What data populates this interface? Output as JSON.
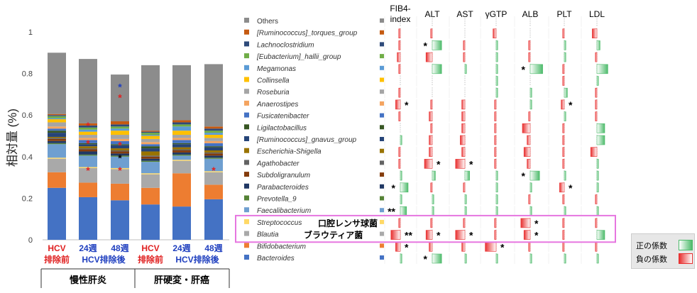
{
  "chart_data": [
    {
      "type": "bar",
      "stacked": true,
      "ylabel": "相対量 (%)",
      "ylim": [
        0,
        1
      ],
      "yticks": [
        "0",
        "0.2",
        "0.4",
        "0.6",
        "0.8",
        "1"
      ],
      "grid": false,
      "groups": [
        {
          "label": "慢性肝炎",
          "columns": [
            0,
            1,
            2
          ]
        },
        {
          "label": "肝硬変・肝癌",
          "columns": [
            3,
            4,
            5
          ]
        }
      ],
      "columns": [
        {
          "line1": "HCV",
          "line2": "排除前",
          "color_key": "red"
        },
        {
          "line1": "24週",
          "line2": "HCV排除後",
          "color_key": "blue"
        },
        {
          "line1": "48週",
          "line2": "",
          "color_key": "blue"
        },
        {
          "line1": "HCV",
          "line2": "排除前",
          "color_key": "red"
        },
        {
          "line1": "24週",
          "line2": "HCV排除後",
          "color_key": "blue"
        },
        {
          "line1": "48週",
          "line2": "",
          "color_key": "blue"
        }
      ],
      "series": [
        {
          "name": "Bacteroides",
          "values": [
            0.25,
            0.205,
            0.19,
            0.17,
            0.16,
            0.195
          ]
        },
        {
          "name": "Bifidobacterium",
          "values": [
            0.075,
            0.07,
            0.08,
            0.08,
            0.16,
            0.07
          ]
        },
        {
          "name": "Blautia",
          "values": [
            0.065,
            0.07,
            0.07,
            0.065,
            0.06,
            0.06
          ]
        },
        {
          "name": "Streptococcus",
          "values": [
            0.005,
            0.005,
            0.005,
            0.005,
            0.005,
            0.005
          ]
        },
        {
          "name": "Faecalibacterium",
          "values": [
            0.065,
            0.055,
            0.055,
            0.055,
            0.02,
            0.06
          ]
        },
        {
          "name": "Prevotella_9",
          "values": [
            0.005,
            0.005,
            0.005,
            0.005,
            0.005,
            0.005
          ]
        },
        {
          "name": "Parabacteroides",
          "values": [
            0.01,
            0.015,
            0.01,
            0.01,
            0.01,
            0.01
          ]
        },
        {
          "name": "Subdoligranulum",
          "values": [
            0.01,
            0.01,
            0.01,
            0.01,
            0.01,
            0.01
          ]
        },
        {
          "name": "Agathobacter",
          "values": [
            0.005,
            0.005,
            0.005,
            0.005,
            0.005,
            0.005
          ]
        },
        {
          "name": "Escherichia-Shigella",
          "values": [
            0.005,
            0.01,
            0.01,
            0.02,
            0.01,
            0.01
          ]
        },
        {
          "name": "[Ruminococcus]_gnavus_group",
          "values": [
            0.02,
            0.01,
            0.015,
            0.015,
            0.015,
            0.015
          ]
        },
        {
          "name": "Ligilactobacillus",
          "values": [
            0.01,
            0.005,
            0.005,
            0.01,
            0.005,
            0.005
          ]
        },
        {
          "name": "Fusicatenibacter",
          "values": [
            0.01,
            0.015,
            0.015,
            0.01,
            0.015,
            0.015
          ]
        },
        {
          "name": "Anaerostipes",
          "values": [
            0.01,
            0.01,
            0.01,
            0.01,
            0.01,
            0.01
          ]
        },
        {
          "name": "Roseburia",
          "values": [
            0.02,
            0.015,
            0.02,
            0.015,
            0.015,
            0.015
          ]
        },
        {
          "name": "Collinsella",
          "values": [
            0.015,
            0.015,
            0.02,
            0.015,
            0.02,
            0.015
          ]
        },
        {
          "name": "Megamonas",
          "values": [
            0.005,
            0.01,
            0.01,
            0.005,
            0.02,
            0.01
          ]
        },
        {
          "name": "[Eubacterium]_hallii_group",
          "values": [
            0.01,
            0.01,
            0.01,
            0.01,
            0.01,
            0.01
          ]
        },
        {
          "name": "Lachnoclostridium",
          "values": [
            0.005,
            0.01,
            0.01,
            0.005,
            0.01,
            0.01
          ]
        },
        {
          "name": "[Ruminococcus]_torques_group",
          "values": [
            0.005,
            0.01,
            0.015,
            0.005,
            0.01,
            0.01
          ]
        },
        {
          "name": "Others",
          "values": [
            0.295,
            0.31,
            0.225,
            0.315,
            0.265,
            0.3
          ]
        }
      ],
      "markers": [
        {
          "column": 1,
          "y": 0.55,
          "text": "*",
          "color_key": "red"
        },
        {
          "column": 1,
          "y": 0.465,
          "text": "*",
          "color_key": "red"
        },
        {
          "column": 1,
          "y": 0.335,
          "text": "*",
          "color_key": "red"
        },
        {
          "column": 2,
          "y": 0.735,
          "text": "*",
          "color_key": "blue"
        },
        {
          "column": 2,
          "y": 0.685,
          "text": "*",
          "color_key": "red"
        },
        {
          "column": 2,
          "y": 0.455,
          "text": "*",
          "color_key": "red"
        },
        {
          "column": 2,
          "y": 0.395,
          "text": "*",
          "color_key": "black"
        },
        {
          "column": 2,
          "y": 0.335,
          "text": "*",
          "color_key": "red"
        },
        {
          "column": 5,
          "y": 0.335,
          "text": "*",
          "color_key": "red"
        }
      ]
    },
    {
      "type": "heatmap",
      "columns": [
        "FIB4-index",
        "ALT",
        "AST",
        "γGTP",
        "ALB",
        "PLT",
        "LDL"
      ],
      "rows": [
        "Others",
        "[Ruminococcus]_torques_group",
        "Lachnoclostridium",
        "[Eubacterium]_hallii_group",
        "Megamonas",
        "Collinsella",
        "Roseburia",
        "Anaerostipes",
        "Fusicatenibacter",
        "Ligilactobacillus",
        "[Ruminococcus]_gnavus_group",
        "Escherichia-Shigella",
        "Agathobacter",
        "Subdoligranulum",
        "Parabacteroides",
        "Prevotella_9",
        "Faecalibacterium",
        "Streptococcus",
        "Blautia",
        "Bifidobacterium",
        "Bacteroides"
      ],
      "coefficients": [
        [
          0,
          0,
          0,
          0,
          0,
          0,
          0
        ],
        [
          -0.1,
          -0.1,
          0,
          -0.2,
          0,
          -0.1,
          -0.3
        ],
        [
          -0.1,
          0.6,
          -0.1,
          0.1,
          -0.1,
          0.1,
          0.2
        ],
        [
          -0.2,
          -0.4,
          -0.1,
          0.1,
          -0.1,
          0.1,
          -0.1
        ],
        [
          -0.1,
          0.6,
          0.1,
          0.1,
          0.8,
          -0.1,
          0.7
        ],
        [
          0,
          0,
          0,
          0.1,
          0,
          -0.1,
          0.1
        ],
        [
          -0.1,
          0,
          0,
          0.1,
          0.1,
          0.2,
          -0.1
        ],
        [
          -0.3,
          -0.1,
          -0.2,
          -0.1,
          0.1,
          -0.2,
          -0.1
        ],
        [
          -0.1,
          -0.2,
          -0.2,
          -0.1,
          -0.1,
          0.1,
          -0.1
        ],
        [
          0,
          -0.1,
          -0.2,
          -0.1,
          -0.5,
          -0.1,
          0.5
        ],
        [
          0.1,
          -0.2,
          -0.3,
          -0.1,
          -0.2,
          -0.1,
          0.5
        ],
        [
          -0.1,
          -0.2,
          -0.2,
          -0.1,
          -0.4,
          -0.1,
          -0.4
        ],
        [
          -0.1,
          -0.5,
          -0.6,
          -0.1,
          -0.2,
          -0.1,
          0.1
        ],
        [
          0.1,
          0.2,
          0.3,
          0.1,
          0.6,
          0.1,
          0.1
        ],
        [
          0.5,
          -0.1,
          -0.1,
          0.1,
          0.1,
          -0.3,
          0.1
        ],
        [
          0.1,
          0.1,
          0.1,
          0.1,
          -0.1,
          -0.1,
          -0.1
        ],
        [
          0.4,
          0.1,
          0.1,
          0.1,
          0.1,
          0.1,
          0.1
        ],
        [
          -0.1,
          -0.1,
          -0.1,
          -0.1,
          -0.6,
          -0.1,
          -0.1
        ],
        [
          -0.6,
          -0.4,
          -0.6,
          -0.1,
          -0.4,
          -0.1,
          0.5
        ],
        [
          -0.3,
          -0.2,
          -0.2,
          -0.7,
          -0.1,
          -0.1,
          -0.1
        ],
        [
          0.1,
          0.6,
          0.1,
          0.1,
          0.1,
          0.1,
          0.1
        ]
      ],
      "significance": [
        {
          "row": 2,
          "col": 1,
          "text": "*"
        },
        {
          "row": 4,
          "col": 4,
          "text": "*"
        },
        {
          "row": 7,
          "col": 0,
          "text": "*"
        },
        {
          "row": 7,
          "col": 5,
          "text": "*"
        },
        {
          "row": 12,
          "col": 1,
          "text": "*"
        },
        {
          "row": 12,
          "col": 2,
          "text": "*"
        },
        {
          "row": 13,
          "col": 4,
          "text": "*"
        },
        {
          "row": 14,
          "col": 0,
          "text": "*"
        },
        {
          "row": 14,
          "col": 5,
          "text": "*"
        },
        {
          "row": 16,
          "col": 0,
          "text": "**"
        },
        {
          "row": 17,
          "col": 4,
          "text": "*"
        },
        {
          "row": 18,
          "col": 0,
          "text": "**"
        },
        {
          "row": 18,
          "col": 1,
          "text": "*"
        },
        {
          "row": 18,
          "col": 2,
          "text": "*"
        },
        {
          "row": 18,
          "col": 4,
          "text": "*"
        },
        {
          "row": 19,
          "col": 0,
          "text": "*"
        },
        {
          "row": 19,
          "col": 3,
          "text": "*"
        },
        {
          "row": 20,
          "col": 1,
          "text": "*"
        }
      ],
      "highlighted_rows": [
        17,
        18
      ],
      "highlight_annotations": [
        {
          "row": 17,
          "text": "口腔レンサ球菌"
        },
        {
          "row": 18,
          "text": "ブラウティア菌"
        }
      ],
      "legend": [
        {
          "label": "正の係数",
          "color": "#4dbb6b"
        },
        {
          "label": "負の係数",
          "color": "#e83030"
        }
      ]
    }
  ],
  "legend_colors": [
    "#8c8c8c",
    "#c55a11",
    "#2e4a7a",
    "#70ad47",
    "#5b9bd5",
    "#ffc000",
    "#a5a5a5",
    "#f4a460",
    "#4472c4",
    "#375623",
    "#264478",
    "#997300",
    "#636363",
    "#843c0c",
    "#203864",
    "#548235",
    "#6f9fd0",
    "#ffd966",
    "#a9a9a9",
    "#ed7d31",
    "#4472c4"
  ],
  "colors": {
    "red": "#e02020",
    "blue": "#1f3fbf",
    "black": "#000000",
    "highlight": "#e676e0",
    "positive": "#4dbb6b",
    "negative": "#e83030"
  }
}
